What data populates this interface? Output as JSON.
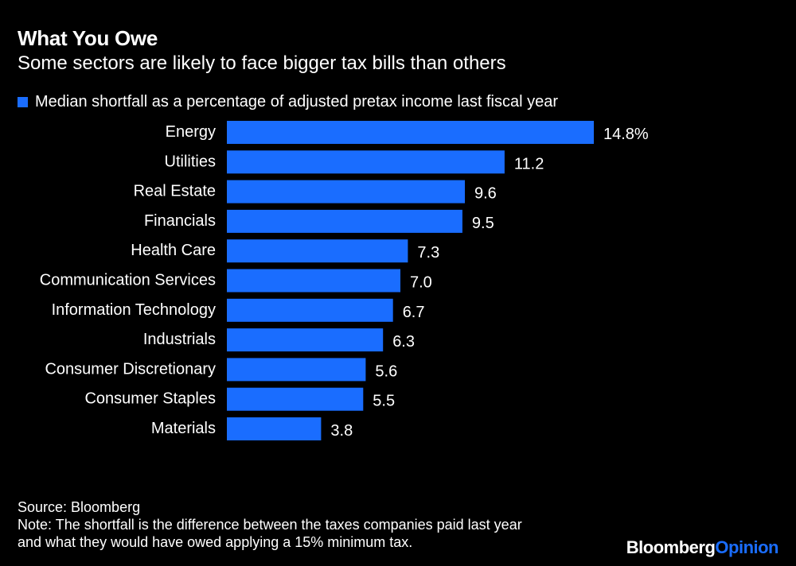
{
  "colors": {
    "background": "#000000",
    "bar": "#1a6dff",
    "text": "#ffffff",
    "brand_accent": "#1a6dff"
  },
  "chart_data": {
    "type": "bar",
    "orientation": "horizontal",
    "title": "What You Owe",
    "subtitle": "Some sectors are likely to face bigger tax bills than others",
    "legend": [
      "Median shortfall as a percentage of adjusted pretax income last fiscal year"
    ],
    "legend_position": "top-left",
    "categories": [
      "Energy",
      "Utilities",
      "Real Estate",
      "Financials",
      "Health Care",
      "Communication Services",
      "Information Technology",
      "Industrials",
      "Consumer Discretionary",
      "Consumer Staples",
      "Materials"
    ],
    "values": [
      14.8,
      11.2,
      9.6,
      9.5,
      7.3,
      7.0,
      6.7,
      6.3,
      5.6,
      5.5,
      3.8
    ],
    "data_labels": [
      "14.8%",
      "11.2",
      "9.6",
      "9.5",
      "7.3",
      "7.0",
      "6.7",
      "6.3",
      "5.6",
      "5.5",
      "3.8"
    ],
    "xlim": [
      0,
      14.8
    ],
    "grid": false
  },
  "footer": {
    "source": "Source: Bloomberg",
    "note_line1": "Note: The shortfall is the difference between the taxes companies paid last year",
    "note_line2": "and what they would have owed applying a 15% minimum tax."
  },
  "brand": {
    "part1": "Bloomberg",
    "part2": "Opinion"
  }
}
